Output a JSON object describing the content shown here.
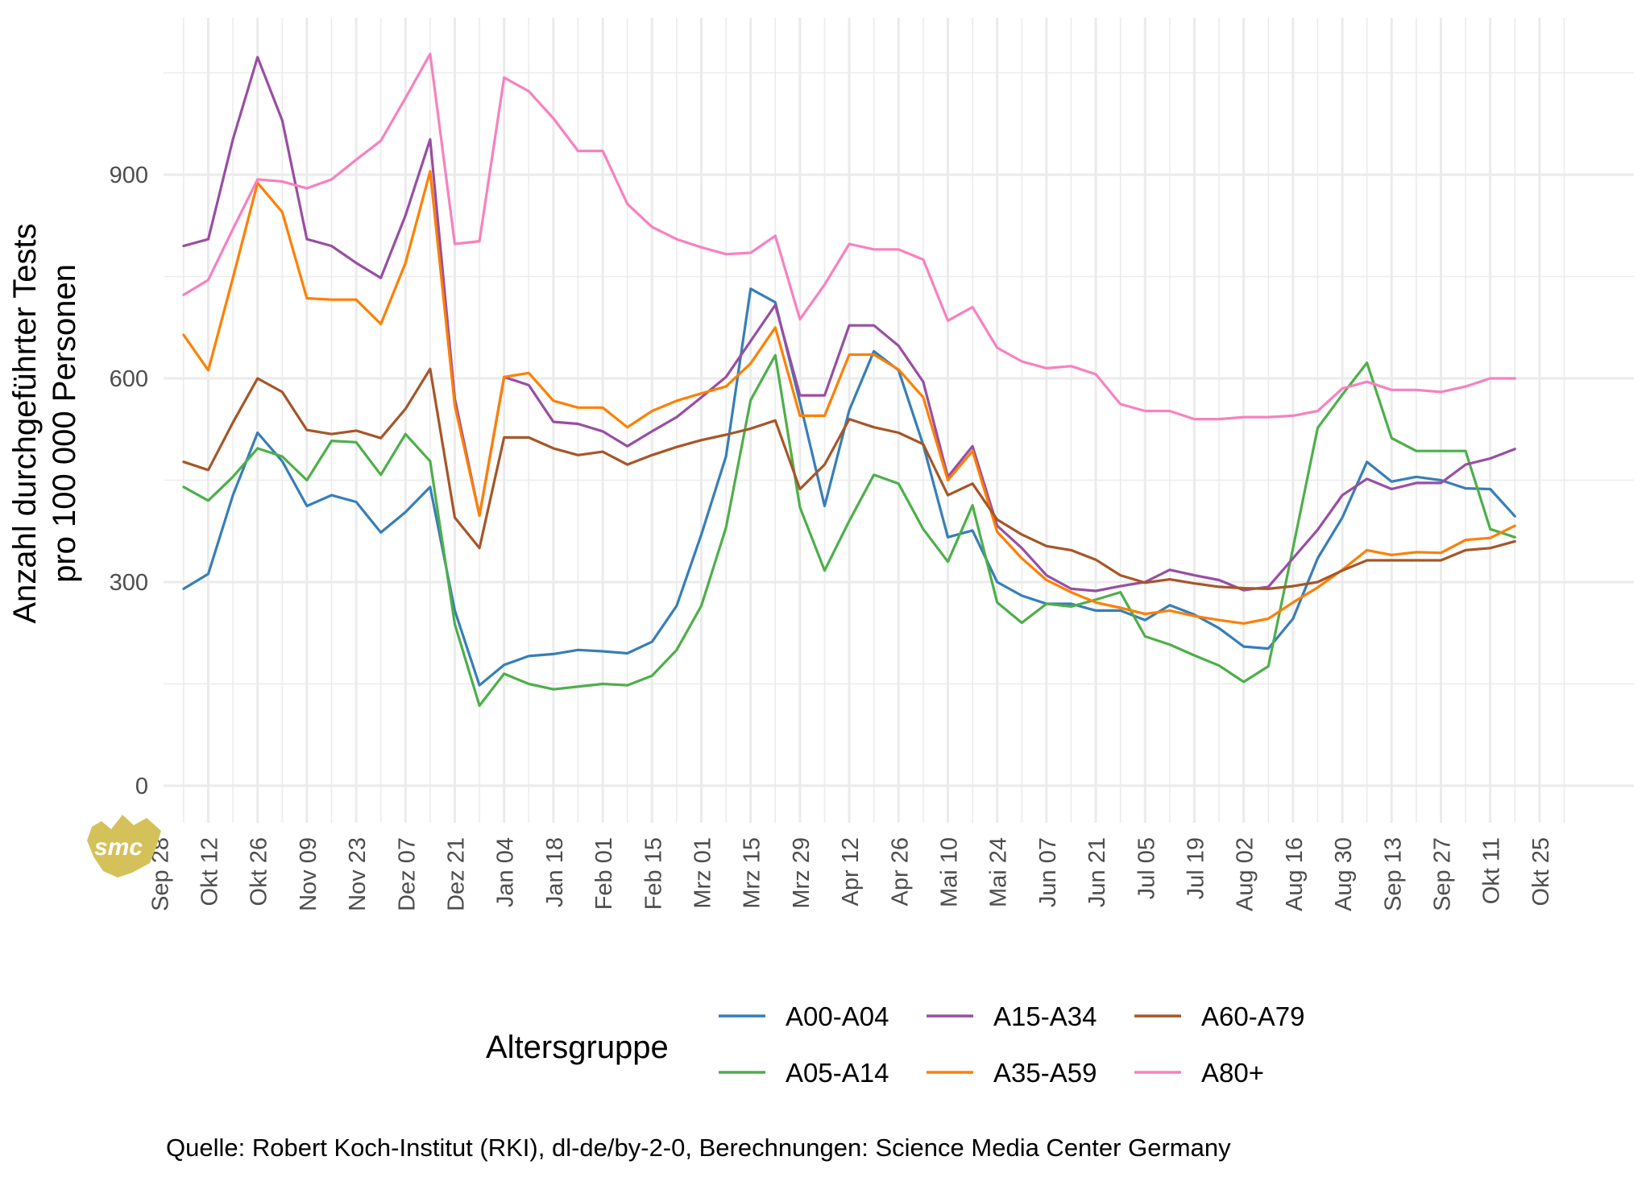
{
  "chart_data": {
    "type": "line",
    "ylabel": [
      "Anzahl durchgeführter Tests",
      "pro 100 000 Personen"
    ],
    "xlabel": "",
    "ylim": [
      -50,
      1120
    ],
    "y_ticks": [
      0,
      300,
      600,
      900
    ],
    "x_ticks": [
      "Sep 28",
      "Okt 12",
      "Okt 26",
      "Nov 09",
      "Nov 23",
      "Dez 07",
      "Dez 21",
      "Jan 04",
      "Jan 18",
      "Feb 01",
      "Feb 15",
      "Mrz 01",
      "Mrz 15",
      "Mrz 29",
      "Apr 12",
      "Apr 26",
      "Mai 10",
      "Mai 24",
      "Jun 07",
      "Jun 21",
      "Jul 05",
      "Jul 19",
      "Aug 02",
      "Aug 16",
      "Aug 30",
      "Sep 13",
      "Sep 27",
      "Okt 11",
      "Okt 25"
    ],
    "x_start_label": "Sep 28",
    "x_step_days": 14,
    "grid": "on",
    "legend_position": "bottom",
    "legend_title": "Altersgruppe",
    "series": [
      {
        "name": "A00-A04",
        "color": "#377EB8",
        "values": [
          290,
          312,
          428,
          520,
          478,
          412,
          428,
          418,
          373,
          403,
          440,
          258,
          148,
          178,
          191,
          194,
          200,
          198,
          195,
          212,
          265,
          370,
          485,
          732,
          712,
          565,
          412,
          553,
          640,
          612,
          502,
          366,
          376,
          300,
          280,
          268,
          268,
          258,
          258,
          244,
          266,
          252,
          232,
          205,
          202,
          246,
          335,
          395,
          477,
          448,
          455,
          450,
          438,
          437,
          397
        ]
      },
      {
        "name": "A05-A14",
        "color": "#4DAF4A",
        "values": [
          440,
          420,
          455,
          497,
          485,
          450,
          508,
          506,
          458,
          518,
          478,
          238,
          118,
          165,
          150,
          142,
          146,
          150,
          148,
          162,
          200,
          265,
          380,
          568,
          634,
          410,
          317,
          390,
          458,
          445,
          378,
          330,
          413,
          270,
          240,
          268,
          264,
          274,
          285,
          220,
          208,
          192,
          177,
          153,
          176,
          350,
          527,
          576,
          623,
          512,
          493,
          493,
          493,
          378,
          366
        ]
      },
      {
        "name": "A15-A34",
        "color": "#984EA3",
        "values": [
          795,
          805,
          952,
          1073,
          980,
          805,
          795,
          770,
          748,
          840,
          952,
          570,
          398,
          602,
          590,
          536,
          533,
          522,
          500,
          522,
          543,
          572,
          602,
          655,
          708,
          575,
          575,
          678,
          678,
          648,
          595,
          455,
          500,
          383,
          350,
          310,
          290,
          287,
          294,
          300,
          318,
          310,
          303,
          288,
          293,
          335,
          377,
          428,
          452,
          437,
          446,
          446,
          473,
          482,
          496
        ]
      },
      {
        "name": "A35-A59",
        "color": "#FF7F00",
        "values": [
          664,
          612,
          748,
          888,
          845,
          718,
          716,
          716,
          680,
          770,
          905,
          560,
          398,
          602,
          608,
          567,
          557,
          557,
          528,
          552,
          567,
          578,
          588,
          622,
          675,
          545,
          545,
          635,
          635,
          613,
          572,
          450,
          493,
          374,
          335,
          303,
          285,
          270,
          262,
          253,
          258,
          250,
          244,
          239,
          246,
          270,
          292,
          318,
          347,
          340,
          344,
          343,
          362,
          365,
          383
        ]
      },
      {
        "name": "A60-A79",
        "color": "#A65628",
        "values": [
          477,
          465,
          535,
          600,
          580,
          524,
          518,
          523,
          512,
          555,
          614,
          395,
          350,
          513,
          513,
          497,
          487,
          492,
          473,
          487,
          499,
          509,
          517,
          526,
          538,
          437,
          473,
          540,
          528,
          520,
          503,
          428,
          445,
          392,
          370,
          353,
          347,
          333,
          310,
          299,
          304,
          298,
          293,
          291,
          290,
          294,
          300,
          317,
          332,
          332,
          332,
          332,
          347,
          350,
          360
        ]
      },
      {
        "name": "A80+",
        "color": "#F781BF",
        "values": [
          723,
          745,
          820,
          893,
          890,
          880,
          893,
          922,
          950,
          1013,
          1078,
          798,
          802,
          1043,
          1023,
          983,
          935,
          935,
          857,
          823,
          805,
          793,
          783,
          785,
          810,
          687,
          738,
          798,
          790,
          790,
          775,
          685,
          705,
          645,
          625,
          615,
          618,
          606,
          562,
          552,
          552,
          540,
          540,
          543,
          543,
          545,
          552,
          585,
          595,
          583,
          583,
          580,
          588,
          600,
          600
        ]
      }
    ]
  },
  "caption": "Quelle: Robert Koch-Institut (RKI), dl-de/by-2-0, Berechnungen: Science Media Center Germany",
  "logo": {
    "text": "smc",
    "color": "#D4C15A"
  }
}
